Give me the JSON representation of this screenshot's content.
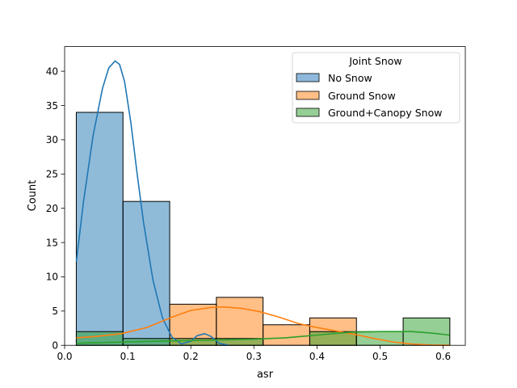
{
  "chart_data": {
    "type": "histogram",
    "xlabel": "asr",
    "ylabel": "Count",
    "xlim": [
      0.0,
      0.635
    ],
    "ylim": [
      0,
      43.6
    ],
    "xticks": [
      0.0,
      0.1,
      0.2,
      0.3,
      0.4,
      0.5,
      0.6
    ],
    "xtick_labels": [
      "0.0",
      "0.1",
      "0.2",
      "0.3",
      "0.4",
      "0.5",
      "0.6"
    ],
    "yticks": [
      0,
      5,
      10,
      15,
      20,
      25,
      30,
      35,
      40
    ],
    "ytick_labels": [
      "0",
      "5",
      "10",
      "15",
      "20",
      "25",
      "30",
      "35",
      "40"
    ],
    "bin_edges": [
      0.0185,
      0.0925,
      0.1665,
      0.2405,
      0.3145,
      0.3885,
      0.4625,
      0.5365,
      0.6105
    ],
    "grid": false,
    "legend": {
      "title": "Joint Snow",
      "placement": "top-right"
    },
    "series": [
      {
        "name": "No Snow",
        "color": "#1f77b4",
        "fill": "#8fb9dc",
        "counts": [
          34,
          21,
          0,
          0,
          0,
          0,
          0,
          0
        ],
        "kde": {
          "x": [
            0.0185,
            0.03,
            0.045,
            0.06,
            0.07,
            0.08,
            0.087,
            0.095,
            0.105,
            0.115,
            0.125,
            0.14,
            0.155,
            0.17,
            0.185,
            0.2,
            0.21,
            0.222,
            0.232,
            0.245,
            0.26
          ],
          "y": [
            12.2,
            21,
            30.5,
            37.5,
            40.5,
            41.5,
            41.0,
            38.5,
            32.5,
            25,
            18,
            9.5,
            4.0,
            1.2,
            0.2,
            0.6,
            1.4,
            1.7,
            1.3,
            0.3,
            0.0
          ]
        }
      },
      {
        "name": "Ground Snow",
        "color": "#ff7f0e",
        "fill": "#ffbf86",
        "counts": [
          0,
          0,
          6,
          7,
          3,
          4,
          0,
          0
        ],
        "kde": {
          "x": [
            0.0185,
            0.05,
            0.09,
            0.13,
            0.17,
            0.2,
            0.23,
            0.25,
            0.28,
            0.31,
            0.34,
            0.37,
            0.4,
            0.43,
            0.46,
            0.49,
            0.52,
            0.55,
            0.58,
            0.61
          ],
          "y": [
            1.1,
            1.3,
            1.7,
            2.6,
            4.1,
            5.1,
            5.5,
            5.6,
            5.4,
            4.9,
            4.1,
            3.2,
            2.6,
            2.1,
            1.6,
            1.0,
            0.5,
            0.2,
            0.05,
            0.0
          ]
        }
      },
      {
        "name": "Ground+Canopy Snow",
        "color": "#2ca02c",
        "fill": "#96cf96",
        "counts": [
          2,
          1,
          1,
          1,
          0,
          2,
          2,
          4
        ],
        "kde": {
          "x": [
            0.0185,
            0.06,
            0.1,
            0.15,
            0.2,
            0.25,
            0.3,
            0.35,
            0.4,
            0.45,
            0.5,
            0.55,
            0.58,
            0.61
          ],
          "y": [
            0.3,
            0.4,
            0.5,
            0.6,
            0.7,
            0.8,
            0.9,
            1.1,
            1.5,
            1.9,
            2.0,
            2.0,
            1.8,
            1.5
          ]
        }
      }
    ]
  }
}
